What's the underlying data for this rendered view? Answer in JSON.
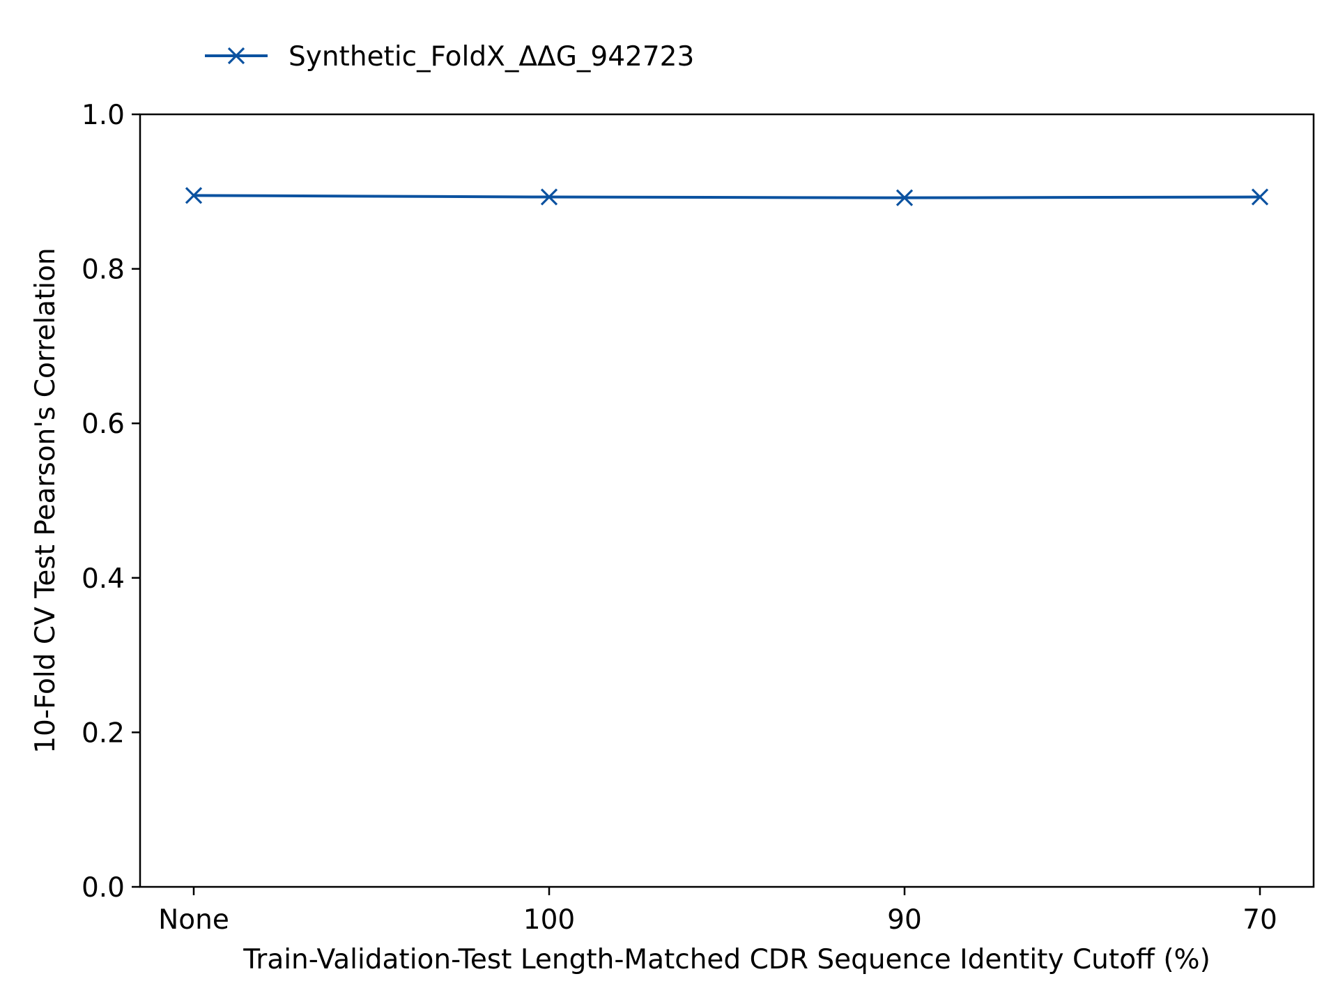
{
  "colors": {
    "series": "#0b52a0",
    "axis": "#000000",
    "background": "#ffffff"
  },
  "chart_data": {
    "type": "line",
    "title": "",
    "xlabel": "Train-Validation-Test Length-Matched CDR Sequence Identity Cutoff (%)",
    "ylabel": "10-Fold CV Test Pearson's Correlation",
    "categories": [
      "None",
      "100",
      "90",
      "70"
    ],
    "ylim": [
      0.0,
      1.0
    ],
    "yticks": [
      "0.0",
      "0.2",
      "0.4",
      "0.6",
      "0.8",
      "1.0"
    ],
    "legend_position": "top-left, outside plot",
    "grid": false,
    "series": [
      {
        "name": "Synthetic_FoldX_ΔΔG_942723",
        "marker": "x",
        "values": [
          0.895,
          0.893,
          0.892,
          0.893
        ]
      }
    ]
  }
}
